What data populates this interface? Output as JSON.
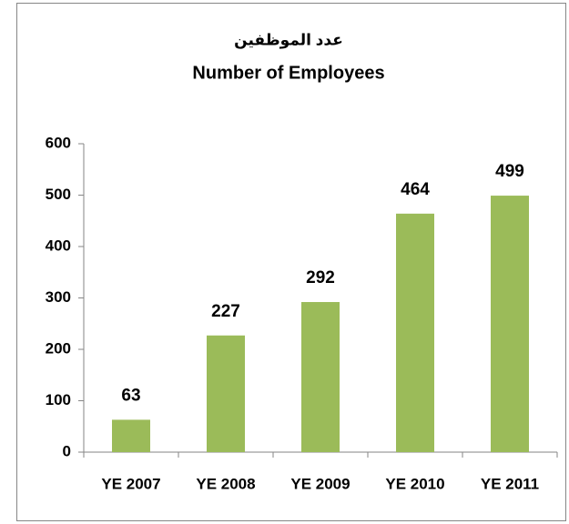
{
  "chart_data": {
    "type": "bar",
    "title": [
      "عدد الموظفين",
      "Number of Employees"
    ],
    "categories": [
      "YE 2007",
      "YE 2008",
      "YE 2009",
      "YE 2010",
      "YE 2011"
    ],
    "values": [
      63,
      227,
      292,
      464,
      499
    ],
    "color": "#9bbb59",
    "ylim": [
      0,
      600
    ],
    "yticks": [
      0,
      100,
      200,
      300,
      400,
      500,
      600
    ],
    "grid": false
  }
}
